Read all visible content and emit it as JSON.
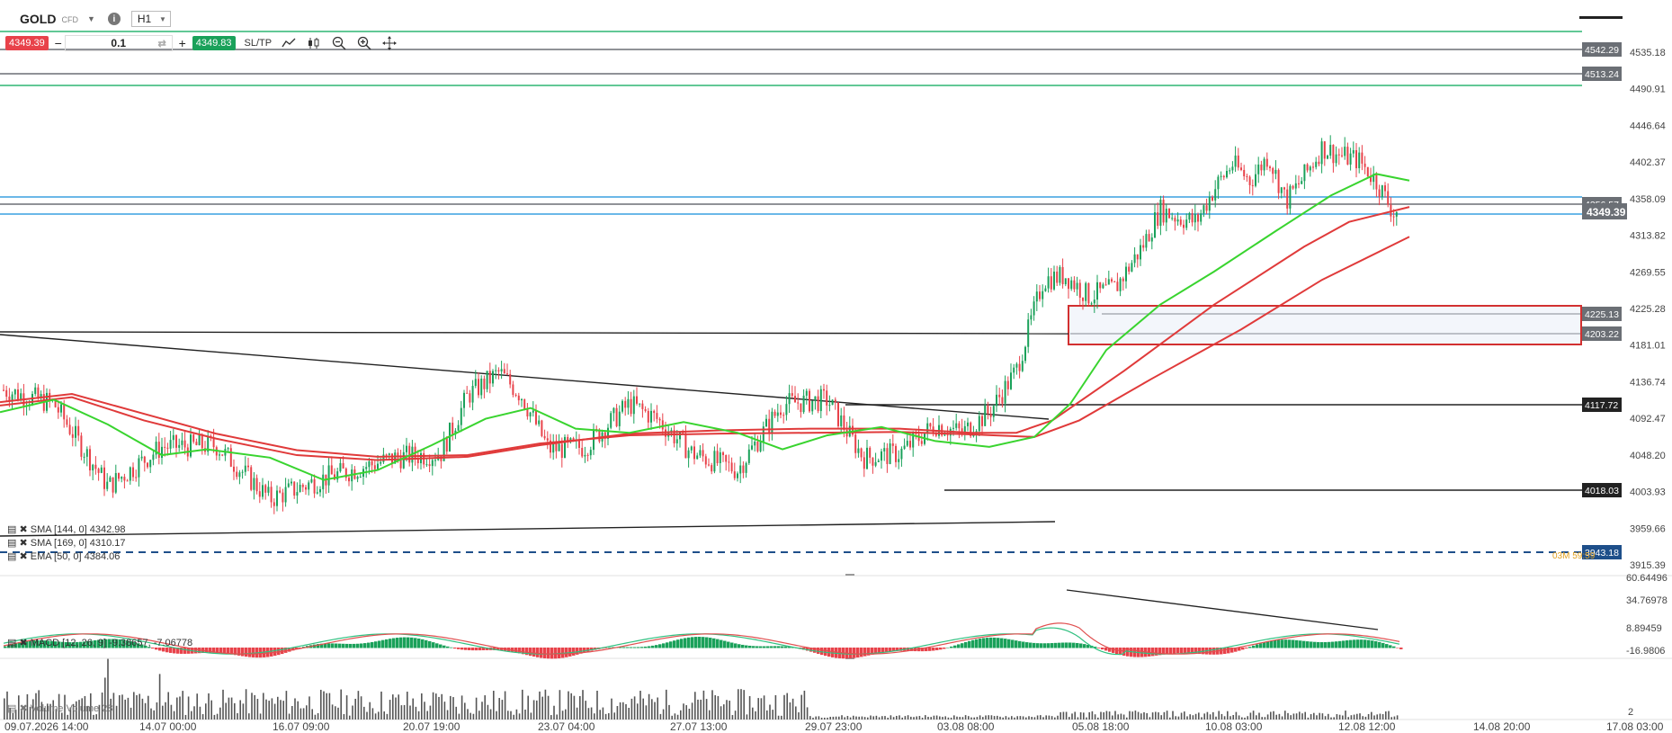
{
  "header": {
    "symbol": "GOLD",
    "instrument_type": "CFD",
    "timeframe": "H1",
    "sell_price": "4349.39",
    "volume": "0.1",
    "buy_price": "4349.83",
    "sltp_label": "SL/TP"
  },
  "price_axis": {
    "ticks": [
      "4535.18",
      "4490.91",
      "4446.64",
      "4402.37",
      "4358.09",
      "4313.82",
      "4269.55",
      "4225.28",
      "4181.01",
      "4136.74",
      "4092.47",
      "4048.20",
      "4003.93",
      "3959.66",
      "3915.39"
    ],
    "current_price": "4349.39"
  },
  "levels": [
    {
      "value": "4542.29",
      "color": "#6b6f75"
    },
    {
      "value": "4513.24",
      "color": "#6b6f75"
    },
    {
      "value": "4356.57",
      "color": "#6b6f75"
    },
    {
      "value": "4225.13",
      "color": "#6b6f75"
    },
    {
      "value": "4203.22",
      "color": "#6b6f75"
    },
    {
      "value": "4117.72",
      "color": "#222222"
    },
    {
      "value": "4018.03",
      "color": "#222222"
    },
    {
      "value": "3943.18",
      "color": "#1e4f8a"
    }
  ],
  "dashed_label": "03M 59:59",
  "indicators": {
    "sma1": "SMA [144, 0] 4342.98",
    "sma2": "SMA [169, 0] 4310.17",
    "ema": "EMA [50, 0] 4384.06",
    "macd": "MACD [12, 26, 9] -9.38657, -7.06778",
    "volume": "Volume Volume 28"
  },
  "macd_axis": [
    "60.64496",
    "34.76978",
    "8.89459",
    "-16.9806"
  ],
  "volume_axis": "2",
  "time_axis": [
    "09.07.2026 14:00",
    "14.07 00:00",
    "16.07 09:00",
    "20.07 19:00",
    "23.07 04:00",
    "27.07 13:00",
    "29.07 23:00",
    "03.08 08:00",
    "05.08 18:00",
    "10.08 03:00",
    "12.08 12:00",
    "14.08 20:00",
    "17.08 03:00"
  ],
  "colors": {
    "up": "#1aa15a",
    "down": "#e8424a",
    "ema": "#39d42f",
    "sma": "#e03a3a",
    "level_green": "#2fb573",
    "level_blue": "#3aa0e0"
  }
}
